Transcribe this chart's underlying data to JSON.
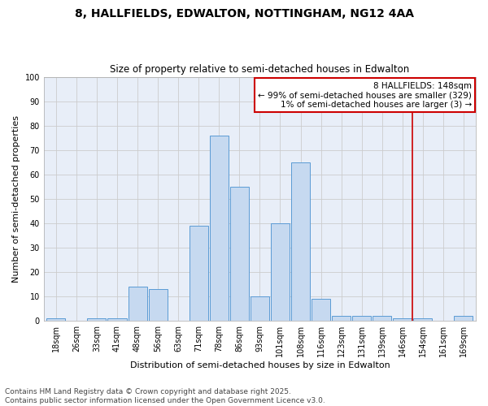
{
  "title1": "8, HALLFIELDS, EDWALTON, NOTTINGHAM, NG12 4AA",
  "title2": "Size of property relative to semi-detached houses in Edwalton",
  "xlabel": "Distribution of semi-detached houses by size in Edwalton",
  "ylabel": "Number of semi-detached properties",
  "categories": [
    "18sqm",
    "26sqm",
    "33sqm",
    "41sqm",
    "48sqm",
    "56sqm",
    "63sqm",
    "71sqm",
    "78sqm",
    "86sqm",
    "93sqm",
    "101sqm",
    "108sqm",
    "116sqm",
    "123sqm",
    "131sqm",
    "139sqm",
    "146sqm",
    "154sqm",
    "161sqm",
    "169sqm"
  ],
  "values": [
    1,
    0,
    1,
    1,
    14,
    13,
    0,
    39,
    76,
    55,
    10,
    40,
    65,
    9,
    2,
    2,
    2,
    1,
    1,
    0,
    2
  ],
  "bar_color_fill": "#c6d9f0",
  "bar_color_edge": "#5b9bd5",
  "vline_color": "#cc0000",
  "vline_x_index": 17,
  "annotation_text": "8 HALLFIELDS: 148sqm\n← 99% of semi-detached houses are smaller (329)\n1% of semi-detached houses are larger (3) →",
  "annotation_box_edgecolor": "#cc0000",
  "ylim": [
    0,
    100
  ],
  "yticks": [
    0,
    10,
    20,
    30,
    40,
    50,
    60,
    70,
    80,
    90,
    100
  ],
  "grid_color": "#cccccc",
  "bg_color": "#e8eef8",
  "footer_line1": "Contains HM Land Registry data © Crown copyright and database right 2025.",
  "footer_line2": "Contains public sector information licensed under the Open Government Licence v3.0.",
  "title1_fontsize": 10,
  "title2_fontsize": 8.5,
  "xlabel_fontsize": 8,
  "ylabel_fontsize": 8,
  "tick_fontsize": 7,
  "annotation_fontsize": 7.5,
  "footer_fontsize": 6.5
}
